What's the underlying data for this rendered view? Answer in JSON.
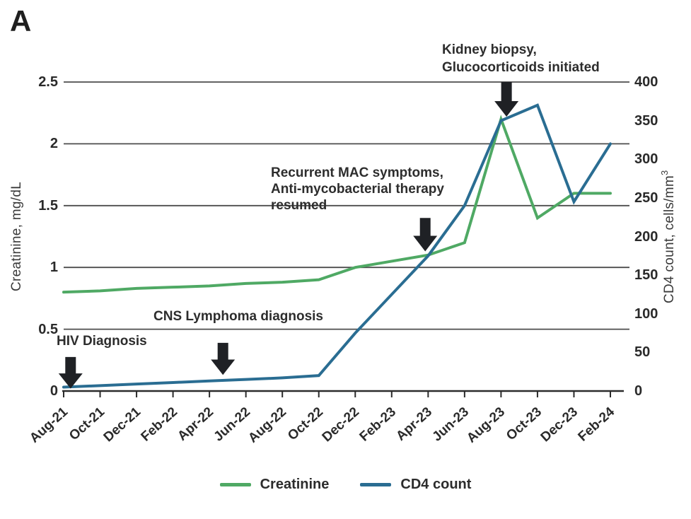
{
  "panel_label": "A",
  "chart_data": {
    "type": "line",
    "categories": [
      "Aug-21",
      "Oct-21",
      "Dec-21",
      "Feb-22",
      "Apr-22",
      "Jun-22",
      "Aug-22",
      "Oct-22",
      "Dec-22",
      "Feb-23",
      "Apr-23",
      "Jun-23",
      "Aug-23",
      "Oct-23",
      "Dec-23",
      "Feb-24"
    ],
    "series": [
      {
        "name": "Creatinine",
        "axis": "left",
        "color": "#4fa964",
        "values": [
          0.8,
          0.81,
          0.83,
          0.84,
          0.85,
          0.87,
          0.88,
          0.9,
          1.0,
          1.05,
          1.1,
          1.2,
          2.2,
          1.4,
          1.6,
          1.6
        ]
      },
      {
        "name": "CD4 count",
        "axis": "right",
        "color": "#2a6d92",
        "values": [
          5,
          7,
          9,
          11,
          13,
          15,
          17,
          20,
          75,
          125,
          175,
          240,
          350,
          370,
          245,
          320
        ]
      }
    ],
    "left_axis": {
      "title": "Creatinine, mg/dL",
      "min": 0,
      "max": 2.5,
      "ticks": [
        0,
        0.5,
        1,
        1.5,
        2,
        2.5
      ]
    },
    "right_axis": {
      "title": "CD4 count, cells/mm",
      "title_sup": "3",
      "min": 0,
      "max": 400,
      "ticks": [
        0,
        50,
        100,
        150,
        200,
        250,
        300,
        350,
        400
      ]
    },
    "grid": true,
    "legend_position": "bottom-center",
    "annotations": [
      {
        "id": "hiv",
        "lines": [
          "HIV Diagnosis"
        ],
        "arrow": {
          "x_index": 0.19,
          "top_value": 0.275,
          "tip_value": 0.02
        }
      },
      {
        "id": "cns",
        "lines": [
          "CNS Lymphoma diagnosis"
        ],
        "arrow": {
          "x_index": 4.37,
          "top_value": 0.39,
          "tip_value": 0.13
        }
      },
      {
        "id": "mac",
        "lines": [
          "Recurrent MAC symptoms,",
          "Anti-mycobacterial therapy",
          "resumed"
        ],
        "arrow": {
          "x_index": 9.92,
          "top_value": 1.4,
          "tip_value": 1.13
        }
      },
      {
        "id": "kidney",
        "lines": [
          "Kidney biopsy,",
          "Glucocorticoids initiated"
        ],
        "arrow": {
          "x_index": 12.15,
          "top_value": 2.5,
          "tip_value": 2.22
        }
      }
    ],
    "colors": {
      "grid": "#4d4d4d",
      "axis": "#2b2b2b",
      "arrow": "#1f2125"
    }
  }
}
